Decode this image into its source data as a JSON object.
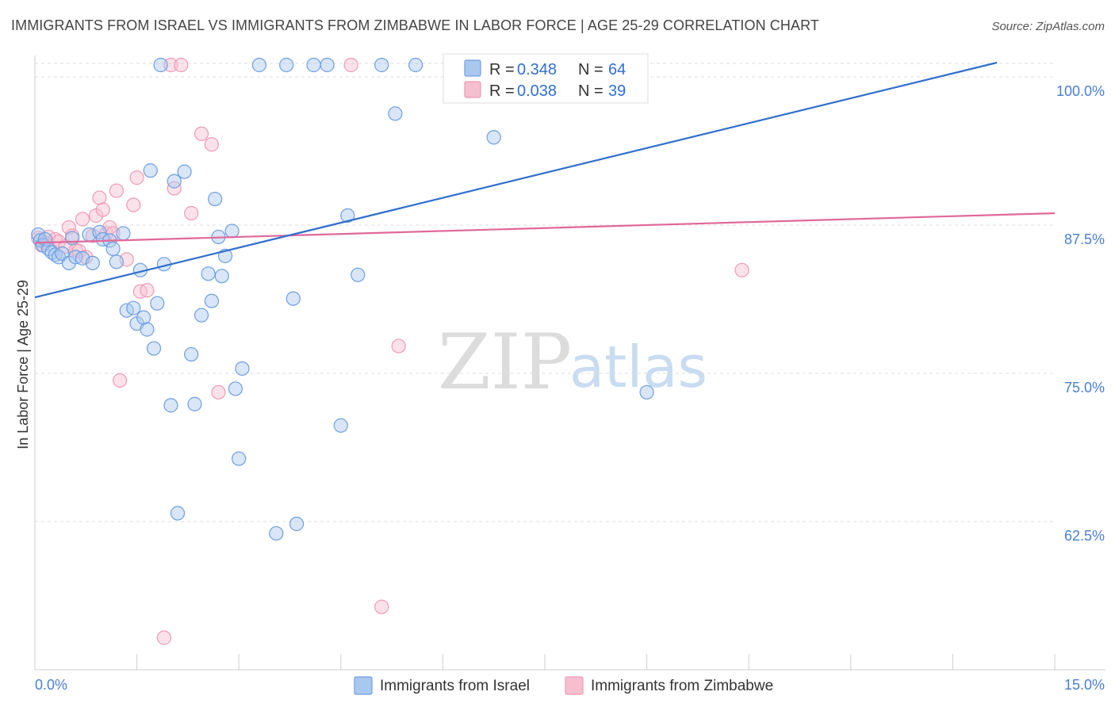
{
  "title": "IMMIGRANTS FROM ISRAEL VS IMMIGRANTS FROM ZIMBABWE IN LABOR FORCE | AGE 25-29 CORRELATION CHART",
  "source": "Source: ZipAtlas.com",
  "watermark": {
    "zip": "ZIP",
    "atlas": "atlas"
  },
  "colors": {
    "israel_fill": "#a9c8f0",
    "israel_stroke": "#6e9fe0",
    "israel_line": "#2f6fd0",
    "zimbabwe_fill": "#f6bfd0",
    "zimbabwe_stroke": "#ee9ab5",
    "zimbabwe_line": "#e06898",
    "grid": "#dddddd",
    "axis_text": "#4a7fd1"
  },
  "legend": {
    "rows": [
      {
        "r_label": "R = ",
        "r_value": "0.348",
        "n_label": "N = ",
        "n_value": "64"
      },
      {
        "r_label": "R = ",
        "r_value": "0.038",
        "n_label": "N = ",
        "n_value": "39"
      }
    ]
  },
  "chart_data": {
    "type": "scatter",
    "title": "IMMIGRANTS FROM ISRAEL VS IMMIGRANTS FROM ZIMBABWE IN LABOR FORCE | AGE 25-29 CORRELATION CHART",
    "xlabel": "",
    "ylabel": "In Labor Force | Age 25-29",
    "xlim": [
      0,
      15
    ],
    "ylim": [
      50,
      101.2
    ],
    "x_tick_labels": [
      "0.0%",
      "15.0%"
    ],
    "y_ticks": [
      62.5,
      75.0,
      87.5,
      100.0
    ],
    "y_tick_labels": [
      "62.5%",
      "75.0%",
      "87.5%",
      "100.0%"
    ],
    "legend_position": "top-center",
    "series": [
      {
        "name": "Immigrants from Israel",
        "R": 0.348,
        "N": 64,
        "trend": {
          "x": [
            0,
            14.15
          ],
          "y": [
            81.4,
            101.2
          ]
        },
        "points": [
          [
            0.05,
            86.7
          ],
          [
            0.08,
            86.2
          ],
          [
            0.12,
            85.8
          ],
          [
            0.15,
            86.3
          ],
          [
            0.2,
            85.5
          ],
          [
            0.25,
            85.2
          ],
          [
            0.3,
            85.0
          ],
          [
            0.35,
            84.8
          ],
          [
            0.4,
            85.1
          ],
          [
            0.5,
            84.3
          ],
          [
            0.55,
            86.4
          ],
          [
            0.6,
            84.8
          ],
          [
            0.7,
            84.7
          ],
          [
            0.8,
            86.7
          ],
          [
            0.85,
            84.3
          ],
          [
            0.95,
            86.9
          ],
          [
            1.0,
            86.3
          ],
          [
            1.1,
            86.2
          ],
          [
            1.15,
            85.5
          ],
          [
            1.2,
            84.4
          ],
          [
            1.3,
            86.8
          ],
          [
            1.35,
            80.3
          ],
          [
            1.45,
            80.5
          ],
          [
            1.5,
            79.2
          ],
          [
            1.55,
            83.7
          ],
          [
            1.6,
            79.7
          ],
          [
            1.65,
            78.7
          ],
          [
            1.7,
            92.1
          ],
          [
            1.75,
            77.1
          ],
          [
            1.8,
            80.9
          ],
          [
            1.85,
            101.0
          ],
          [
            1.9,
            84.2
          ],
          [
            2.0,
            72.3
          ],
          [
            2.05,
            91.2
          ],
          [
            2.1,
            63.2
          ],
          [
            2.2,
            92.0
          ],
          [
            2.3,
            76.6
          ],
          [
            2.35,
            72.4
          ],
          [
            2.45,
            79.9
          ],
          [
            2.55,
            83.4
          ],
          [
            2.6,
            81.1
          ],
          [
            2.65,
            89.7
          ],
          [
            2.7,
            86.5
          ],
          [
            2.75,
            83.2
          ],
          [
            2.8,
            84.9
          ],
          [
            2.9,
            87.0
          ],
          [
            2.95,
            73.7
          ],
          [
            3.0,
            67.8
          ],
          [
            3.05,
            75.4
          ],
          [
            3.3,
            101.0
          ],
          [
            3.55,
            61.5
          ],
          [
            3.7,
            101.0
          ],
          [
            3.8,
            81.3
          ],
          [
            3.85,
            62.3
          ],
          [
            4.1,
            101.0
          ],
          [
            4.3,
            101.0
          ],
          [
            4.5,
            70.6
          ],
          [
            4.6,
            88.3
          ],
          [
            4.75,
            83.3
          ],
          [
            5.1,
            101.0
          ],
          [
            5.3,
            96.9
          ],
          [
            5.6,
            101.0
          ],
          [
            6.75,
            94.9
          ],
          [
            9.0,
            73.4
          ]
        ]
      },
      {
        "name": "Immigrants from Zimbabwe",
        "R": 0.038,
        "N": 39,
        "trend": {
          "x": [
            0,
            15
          ],
          "y": [
            86.0,
            88.5
          ]
        },
        "points": [
          [
            0.05,
            86.4
          ],
          [
            0.1,
            85.8
          ],
          [
            0.15,
            86.0
          ],
          [
            0.2,
            86.5
          ],
          [
            0.3,
            86.3
          ],
          [
            0.35,
            86.1
          ],
          [
            0.45,
            85.7
          ],
          [
            0.5,
            87.3
          ],
          [
            0.55,
            86.6
          ],
          [
            0.6,
            85.4
          ],
          [
            0.65,
            85.3
          ],
          [
            0.7,
            88.0
          ],
          [
            0.75,
            84.8
          ],
          [
            0.85,
            86.6
          ],
          [
            0.9,
            88.3
          ],
          [
            0.95,
            89.8
          ],
          [
            1.0,
            88.8
          ],
          [
            1.05,
            86.8
          ],
          [
            1.1,
            87.3
          ],
          [
            1.15,
            86.8
          ],
          [
            1.2,
            90.4
          ],
          [
            1.25,
            74.4
          ],
          [
            1.35,
            84.6
          ],
          [
            1.45,
            89.2
          ],
          [
            1.5,
            91.5
          ],
          [
            1.55,
            81.9
          ],
          [
            1.65,
            82.0
          ],
          [
            1.9,
            52.7
          ],
          [
            2.0,
            101.0
          ],
          [
            2.05,
            90.6
          ],
          [
            2.15,
            101.0
          ],
          [
            2.3,
            88.5
          ],
          [
            2.45,
            95.2
          ],
          [
            2.6,
            94.3
          ],
          [
            2.7,
            73.4
          ],
          [
            4.65,
            101.0
          ],
          [
            5.1,
            55.3
          ],
          [
            5.35,
            77.3
          ],
          [
            10.4,
            83.7
          ]
        ]
      }
    ]
  },
  "bottom_legend": {
    "israel": "Immigrants from Israel",
    "zimbabwe": "Immigrants from Zimbabwe"
  }
}
